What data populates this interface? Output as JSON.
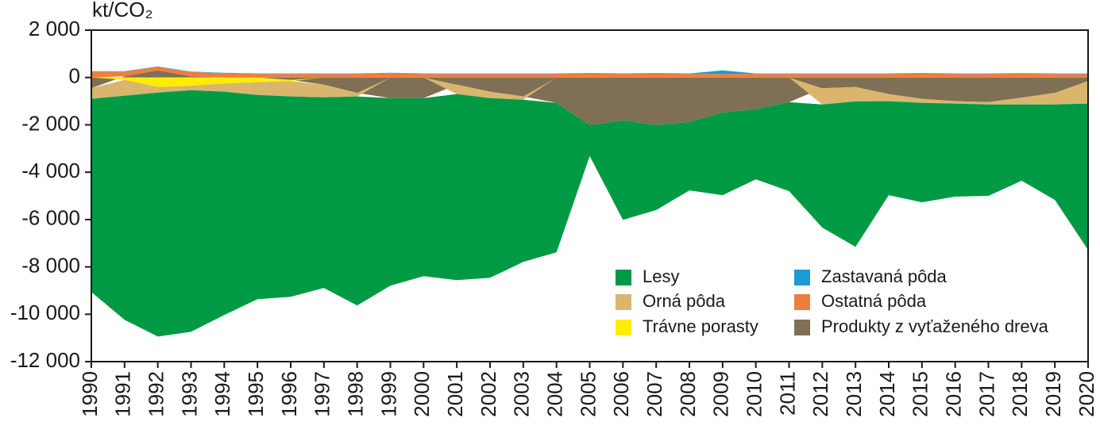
{
  "chart_data": {
    "type": "stacked-area",
    "y_label": "kt/CO₂",
    "x": [
      1990,
      1991,
      1992,
      1993,
      1994,
      1995,
      1996,
      1997,
      1998,
      1999,
      2000,
      2001,
      2002,
      2003,
      2004,
      2005,
      2006,
      2007,
      2008,
      2009,
      2010,
      2011,
      2012,
      2013,
      2014,
      2015,
      2016,
      2017,
      2018,
      2019,
      2020
    ],
    "xlim": [
      1990,
      2020
    ],
    "ylim": [
      -12000,
      2000
    ],
    "yticks": [
      {
        "value": 2000,
        "label": "2 000"
      },
      0,
      {
        "value": -2000,
        "label": "-2 000"
      },
      {
        "value": -4000,
        "label": "-4 000"
      },
      {
        "value": -6000,
        "label": "-6 000"
      },
      {
        "value": -8000,
        "label": "-8 000"
      },
      {
        "value": -10000,
        "label": "-10 000"
      },
      {
        "value": -12000,
        "label": "-12 000"
      }
    ],
    "series": [
      {
        "name": "Lesy",
        "color": "#009a44",
        "values": [
          -8160,
          -9460,
          -10300,
          -10200,
          -9430,
          -8620,
          -8460,
          -8050,
          -8830,
          -7920,
          -7520,
          -7860,
          -7590,
          -6850,
          -6310,
          -1310,
          -4200,
          -3590,
          -2890,
          -3490,
          -2960,
          -3760,
          -5200,
          -6140,
          -3970,
          -4200,
          -3930,
          -3860,
          -3220,
          -4030,
          -6180
        ]
      },
      {
        "name": "Orná pôda",
        "color": "#d9b56e",
        "values": [
          -450,
          -670,
          -240,
          -190,
          -350,
          -540,
          -650,
          -540,
          -150,
          0,
          0,
          -400,
          -270,
          -140,
          0,
          0,
          0,
          0,
          0,
          0,
          0,
          0,
          -690,
          -610,
          -300,
          -170,
          -100,
          -100,
          -290,
          -490,
          -950
        ]
      },
      {
        "name": "Trávne porasty",
        "color": "#ffed00",
        "values": [
          0,
          -100,
          -400,
          -350,
          -250,
          -200,
          -50,
          0,
          0,
          0,
          0,
          0,
          0,
          0,
          0,
          0,
          0,
          0,
          0,
          0,
          0,
          0,
          0,
          0,
          0,
          0,
          0,
          0,
          0,
          0,
          0
        ]
      },
      {
        "name": "Zastavaná pôda",
        "color": "#1a9ad6",
        "values": [
          20,
          20,
          20,
          20,
          20,
          20,
          20,
          20,
          20,
          20,
          20,
          20,
          20,
          20,
          20,
          20,
          20,
          20,
          20,
          150,
          20,
          20,
          20,
          20,
          20,
          20,
          20,
          20,
          20,
          20,
          20
        ]
      },
      {
        "name": "Ostatná pôda",
        "color": "#ef7d3b",
        "values": [
          250,
          200,
          150,
          180,
          180,
          150,
          150,
          150,
          150,
          180,
          150,
          150,
          150,
          150,
          150,
          170,
          150,
          170,
          150,
          150,
          150,
          150,
          150,
          150,
          150,
          170,
          150,
          150,
          160,
          150,
          150
        ]
      },
      {
        "name": "Produkty z vyťaženého dreva",
        "color": "#7f6f55",
        "values": [
          -450,
          50,
          300,
          50,
          0,
          0,
          -100,
          -300,
          -650,
          -870,
          -870,
          -300,
          -600,
          -800,
          -1070,
          -2010,
          -1810,
          -2010,
          -1880,
          -1480,
          -1340,
          -1040,
          -450,
          -400,
          -700,
          -900,
          -1000,
          -1040,
          -850,
          -650,
          -150
        ]
      }
    ]
  }
}
